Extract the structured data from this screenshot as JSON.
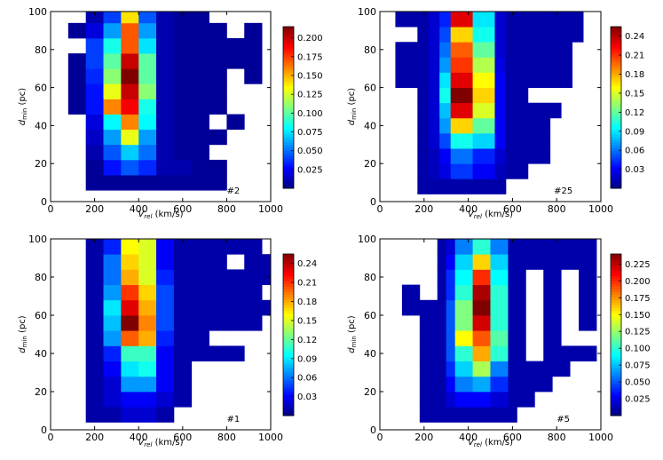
{
  "chart_data": [
    {
      "type": "heatmap",
      "panel_label": "#2",
      "xlabel": "V_rel (km/s)",
      "ylabel": "d_min (pc)",
      "xlim": [
        0,
        1000
      ],
      "ylim": [
        0,
        100
      ],
      "x_ticks": [
        "0",
        "200",
        "400",
        "600",
        "800",
        "1000"
      ],
      "y_ticks": [
        "0",
        "20",
        "40",
        "60",
        "80",
        "100"
      ],
      "colorbar_ticks": [
        "0.025",
        "0.050",
        "0.075",
        "0.100",
        "0.125",
        "0.150",
        "0.175",
        "0.200"
      ],
      "vmax": 0.215,
      "x_edges": [
        0,
        80,
        160,
        240,
        320,
        400,
        480,
        560,
        640,
        720,
        800,
        880,
        960
      ],
      "y_edges": [
        6,
        14,
        22,
        30,
        38,
        46,
        54,
        62,
        70,
        78,
        86,
        94,
        100
      ],
      "values": [
        [
          0,
          0,
          0.005,
          0.005,
          0.005,
          0.005,
          0.005,
          0.005,
          0.005,
          0.005,
          0,
          0
        ],
        [
          0,
          0,
          0.005,
          0.03,
          0.045,
          0.035,
          0.01,
          0.01,
          0.005,
          0.005,
          0,
          0
        ],
        [
          0,
          0,
          0.01,
          0.045,
          0.07,
          0.05,
          0.01,
          0.005,
          0.005,
          0,
          0,
          0
        ],
        [
          0,
          0,
          0.015,
          0.06,
          0.13,
          0.06,
          0.01,
          0.005,
          0.005,
          0.005,
          0,
          0
        ],
        [
          0,
          0,
          0.02,
          0.08,
          0.16,
          0.08,
          0.01,
          0.005,
          0.005,
          0,
          0.005,
          0
        ],
        [
          0,
          0.005,
          0.03,
          0.16,
          0.19,
          0.085,
          0.01,
          0.005,
          0.005,
          0.005,
          0,
          0
        ],
        [
          0,
          0.005,
          0.03,
          0.13,
          0.2,
          0.11,
          0.01,
          0.005,
          0.005,
          0.005,
          0,
          0
        ],
        [
          0,
          0.005,
          0.035,
          0.11,
          0.215,
          0.1,
          0.01,
          0.005,
          0.005,
          0.005,
          0,
          0.005
        ],
        [
          0,
          0.005,
          0.04,
          0.1,
          0.2,
          0.1,
          0.01,
          0.005,
          0.005,
          0.005,
          0.005,
          0.005
        ],
        [
          0,
          0,
          0.04,
          0.085,
          0.17,
          0.075,
          0.01,
          0.005,
          0.005,
          0.005,
          0.005,
          0.005
        ],
        [
          0,
          0.005,
          0.02,
          0.06,
          0.17,
          0.06,
          0.01,
          0.005,
          0.005,
          0.005,
          0,
          0.005
        ],
        [
          0,
          0,
          0.01,
          0.04,
          0.14,
          0.045,
          0.01,
          0.005,
          0.005,
          0,
          0,
          0
        ]
      ]
    },
    {
      "type": "heatmap",
      "panel_label": "#25",
      "xlabel": "V_rel (km/s)",
      "ylabel": "d_min (pc)",
      "xlim": [
        0,
        1000
      ],
      "ylim": [
        0,
        100
      ],
      "x_ticks": [
        "0",
        "200",
        "400",
        "600",
        "800",
        "1000"
      ],
      "y_ticks": [
        "0",
        "20",
        "40",
        "60",
        "80",
        "100"
      ],
      "colorbar_ticks": [
        "0.03",
        "0.06",
        "0.09",
        "0.12",
        "0.15",
        "0.18",
        "0.21",
        "0.24"
      ],
      "vmax": 0.255,
      "x_edges": [
        70,
        120,
        170,
        220,
        270,
        320,
        370,
        420,
        470,
        520,
        570,
        620,
        670,
        720,
        770,
        820,
        870,
        920
      ],
      "y_edges": [
        4,
        12,
        20,
        28,
        36,
        44,
        52,
        60,
        68,
        76,
        84,
        92,
        100
      ],
      "values": [
        [
          0,
          0,
          0.01,
          0.01,
          0.01,
          0.01,
          0.01,
          0.01,
          0.01,
          0.01,
          0,
          0,
          0,
          0,
          0,
          0,
          0
        ],
        [
          0,
          0,
          0.01,
          0.015,
          0.025,
          0.045,
          0.045,
          0.03,
          0.03,
          0.015,
          0.01,
          0.01,
          0,
          0,
          0,
          0,
          0
        ],
        [
          0,
          0,
          0.01,
          0.015,
          0.03,
          0.06,
          0.06,
          0.04,
          0.04,
          0.02,
          0.01,
          0.01,
          0.01,
          0.01,
          0,
          0,
          0
        ],
        [
          0,
          0,
          0.01,
          0.02,
          0.05,
          0.1,
          0.1,
          0.085,
          0.085,
          0.03,
          0.01,
          0.01,
          0.01,
          0.01,
          0,
          0,
          0
        ],
        [
          0,
          0,
          0.01,
          0.02,
          0.07,
          0.17,
          0.17,
          0.12,
          0.12,
          0.03,
          0.01,
          0.01,
          0.01,
          0.01,
          0,
          0,
          0
        ],
        [
          0,
          0,
          0.01,
          0.02,
          0.08,
          0.23,
          0.23,
          0.15,
          0.15,
          0.03,
          0.01,
          0.01,
          0.01,
          0.01,
          0.01,
          0,
          0
        ],
        [
          0,
          0,
          0.01,
          0.02,
          0.1,
          0.26,
          0.26,
          0.17,
          0.17,
          0.03,
          0.01,
          0.01,
          0,
          0,
          0,
          0,
          0
        ],
        [
          0.01,
          0.01,
          0.01,
          0.02,
          0.09,
          0.23,
          0.23,
          0.16,
          0.16,
          0.03,
          0.01,
          0.01,
          0.01,
          0.01,
          0.01,
          0.01,
          0
        ],
        [
          0.01,
          0.01,
          0.01,
          0.02,
          0.07,
          0.21,
          0.21,
          0.14,
          0.14,
          0.025,
          0.01,
          0.01,
          0.01,
          0.01,
          0.01,
          0.01,
          0
        ],
        [
          0.01,
          0.01,
          0.01,
          0.02,
          0.06,
          0.2,
          0.2,
          0.12,
          0.12,
          0.02,
          0.01,
          0.01,
          0.01,
          0.01,
          0.01,
          0.01,
          0
        ],
        [
          0,
          0,
          0.01,
          0.02,
          0.05,
          0.17,
          0.17,
          0.1,
          0.1,
          0.02,
          0.01,
          0.01,
          0.01,
          0.01,
          0.01,
          0.01,
          0.01
        ],
        [
          0.01,
          0.01,
          0.01,
          0.02,
          0.04,
          0.23,
          0.23,
          0.09,
          0.09,
          0.02,
          0.01,
          0.01,
          0.01,
          0.01,
          0.01,
          0.01,
          0.01
        ]
      ]
    },
    {
      "type": "heatmap",
      "panel_label": "#1",
      "xlabel": "V_rel (km/s)",
      "ylabel": "d_min (pc)",
      "xlim": [
        0,
        1000
      ],
      "ylim": [
        0,
        100
      ],
      "x_ticks": [
        "0",
        "200",
        "400",
        "600",
        "800",
        "1000"
      ],
      "y_ticks": [
        "0",
        "20",
        "40",
        "60",
        "80",
        "100"
      ],
      "colorbar_ticks": [
        "0.03",
        "0.06",
        "0.09",
        "0.12",
        "0.15",
        "0.18",
        "0.21",
        "0.24"
      ],
      "vmax": 0.255,
      "x_edges": [
        160,
        240,
        320,
        400,
        480,
        560,
        640,
        720,
        800,
        880,
        960,
        1000
      ],
      "y_edges": [
        4,
        12,
        20,
        28,
        36,
        44,
        52,
        60,
        68,
        76,
        84,
        92,
        100
      ],
      "values": [
        [
          0.01,
          0.01,
          0.02,
          0.02,
          0.01,
          0,
          0,
          0,
          0,
          0,
          0
        ],
        [
          0.01,
          0.02,
          0.03,
          0.03,
          0.02,
          0.01,
          0,
          0,
          0,
          0,
          0
        ],
        [
          0.01,
          0.02,
          0.07,
          0.07,
          0.03,
          0.01,
          0,
          0,
          0,
          0,
          0
        ],
        [
          0.01,
          0.03,
          0.09,
          0.1,
          0.03,
          0.01,
          0,
          0,
          0,
          0,
          0
        ],
        [
          0.01,
          0.04,
          0.11,
          0.11,
          0.03,
          0.01,
          0.01,
          0.01,
          0.01,
          0,
          0
        ],
        [
          0.01,
          0.07,
          0.2,
          0.18,
          0.04,
          0.01,
          0.01,
          0,
          0,
          0,
          0
        ],
        [
          0.01,
          0.08,
          0.26,
          0.19,
          0.05,
          0.01,
          0.01,
          0.01,
          0.01,
          0.01,
          0
        ],
        [
          0.01,
          0.09,
          0.23,
          0.18,
          0.05,
          0.01,
          0.01,
          0.01,
          0.01,
          0.01,
          0.01
        ],
        [
          0.01,
          0.07,
          0.21,
          0.17,
          0.05,
          0.01,
          0.01,
          0.01,
          0.01,
          0.01,
          0
        ],
        [
          0.01,
          0.06,
          0.18,
          0.15,
          0.04,
          0.01,
          0.01,
          0.01,
          0.01,
          0.01,
          0.01
        ],
        [
          0.01,
          0.06,
          0.17,
          0.15,
          0.03,
          0.01,
          0.01,
          0.01,
          0,
          0.01,
          0.01
        ],
        [
          0.01,
          0.04,
          0.16,
          0.15,
          0.03,
          0.01,
          0.01,
          0.01,
          0.01,
          0.01,
          0
        ]
      ]
    },
    {
      "type": "heatmap",
      "panel_label": "#5",
      "xlabel": "V_rel (km/s)",
      "ylabel": "d_min (pc)",
      "xlim": [
        0,
        1000
      ],
      "ylim": [
        0,
        100
      ],
      "x_ticks": [
        "0",
        "200",
        "400",
        "600",
        "800",
        "1000"
      ],
      "y_ticks": [
        "0",
        "20",
        "40",
        "60",
        "80",
        "100"
      ],
      "colorbar_ticks": [
        "0.025",
        "0.050",
        "0.075",
        "0.100",
        "0.125",
        "0.150",
        "0.175",
        "0.200",
        "0.225"
      ],
      "vmax": 0.24,
      "x_edges": [
        100,
        140,
        180,
        220,
        260,
        300,
        340,
        380,
        420,
        460,
        500,
        540,
        580,
        620,
        660,
        700,
        740,
        780,
        820,
        860,
        900,
        940,
        980
      ],
      "y_edges": [
        4,
        12,
        20,
        28,
        36,
        44,
        52,
        60,
        68,
        76,
        84,
        92,
        100
      ],
      "values": [
        [
          0,
          0,
          0.01,
          0.01,
          0.01,
          0.01,
          0.01,
          0.01,
          0.01,
          0.01,
          0.01,
          0.01,
          0.01,
          0,
          0,
          0,
          0,
          0,
          0,
          0,
          0,
          0
        ],
        [
          0,
          0,
          0.01,
          0.01,
          0.01,
          0.02,
          0.03,
          0.03,
          0.03,
          0.03,
          0.02,
          0.02,
          0.01,
          0.01,
          0.01,
          0,
          0,
          0,
          0,
          0,
          0,
          0
        ],
        [
          0,
          0,
          0.01,
          0.01,
          0.01,
          0.03,
          0.06,
          0.06,
          0.07,
          0.07,
          0.04,
          0.04,
          0.01,
          0.01,
          0.01,
          0.01,
          0.01,
          0,
          0,
          0,
          0,
          0
        ],
        [
          0,
          0,
          0.01,
          0.01,
          0.01,
          0.04,
          0.08,
          0.08,
          0.13,
          0.13,
          0.06,
          0.06,
          0.01,
          0.01,
          0.01,
          0.01,
          0.01,
          0.01,
          0.01,
          0,
          0,
          0
        ],
        [
          0,
          0,
          0.01,
          0.01,
          0.01,
          0.05,
          0.1,
          0.1,
          0.17,
          0.17,
          0.1,
          0.1,
          0.01,
          0.01,
          0,
          0,
          0.01,
          0.01,
          0.01,
          0.01,
          0.01,
          0.01
        ],
        [
          0,
          0,
          0.01,
          0.01,
          0.01,
          0.05,
          0.15,
          0.15,
          0.19,
          0.19,
          0.11,
          0.11,
          0.01,
          0.01,
          0,
          0,
          0.01,
          0.01,
          0,
          0,
          0,
          0
        ],
        [
          0,
          0,
          0.01,
          0.01,
          0.01,
          0.05,
          0.12,
          0.12,
          0.22,
          0.22,
          0.1,
          0.1,
          0.01,
          0.01,
          0,
          0,
          0.01,
          0.01,
          0,
          0,
          0.01,
          0.01
        ],
        [
          0.01,
          0.01,
          0.01,
          0.01,
          0.01,
          0.05,
          0.12,
          0.12,
          0.24,
          0.24,
          0.1,
          0.1,
          0.01,
          0.01,
          0,
          0,
          0.01,
          0.01,
          0,
          0,
          0.01,
          0.01
        ],
        [
          0.01,
          0.01,
          0,
          0,
          0.01,
          0.04,
          0.1,
          0.1,
          0.23,
          0.23,
          0.1,
          0.1,
          0.01,
          0.01,
          0,
          0,
          0.01,
          0.01,
          0,
          0,
          0.01,
          0.01
        ],
        [
          0,
          0,
          0,
          0,
          0.01,
          0.04,
          0.09,
          0.09,
          0.2,
          0.2,
          0.09,
          0.09,
          0.01,
          0.01,
          0,
          0,
          0.01,
          0.01,
          0,
          0,
          0.01,
          0.01
        ],
        [
          0,
          0,
          0,
          0,
          0.01,
          0.03,
          0.08,
          0.08,
          0.16,
          0.16,
          0.08,
          0.08,
          0.01,
          0.01,
          0.01,
          0.01,
          0.01,
          0.01,
          0.01,
          0.01,
          0.01,
          0.01
        ],
        [
          0,
          0,
          0,
          0,
          0.01,
          0.02,
          0.06,
          0.06,
          0.1,
          0.1,
          0.06,
          0.06,
          0.01,
          0.01,
          0.01,
          0.01,
          0.01,
          0.01,
          0.01,
          0.01,
          0.01,
          0.01
        ]
      ]
    }
  ]
}
